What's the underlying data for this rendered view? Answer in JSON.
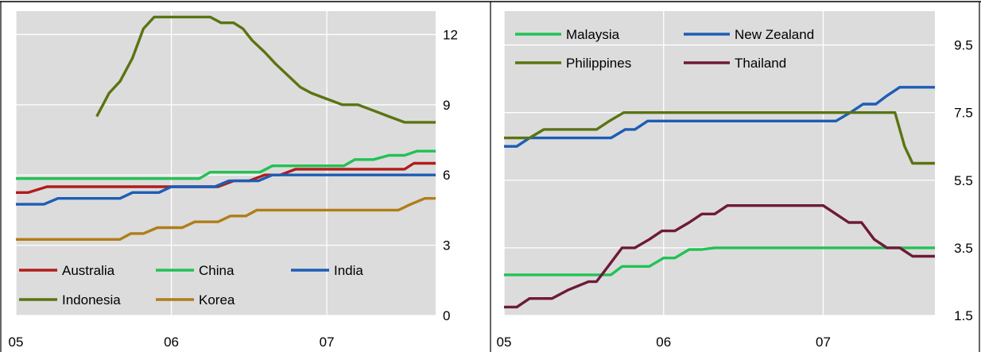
{
  "chart_data": [
    {
      "type": "line",
      "x_ticks": [
        "05",
        "06",
        "07"
      ],
      "xlim": [
        0,
        27
      ],
      "ylim": [
        0,
        13
      ],
      "y_ticks": [
        "0",
        "3",
        "6",
        "9",
        "12"
      ],
      "grid": true,
      "legend_position": "bottom-left",
      "series": [
        {
          "name": "Australia",
          "color": "#B01C1C",
          "x": [
            0,
            0.8,
            2,
            4,
            6,
            8,
            9,
            10,
            11,
            12,
            13,
            14,
            15,
            16,
            17,
            18,
            19,
            20,
            21,
            22,
            23,
            24,
            25,
            25.6,
            26.4,
            27
          ],
          "y": [
            5.25,
            5.25,
            5.5,
            5.5,
            5.5,
            5.5,
            5.5,
            5.5,
            5.5,
            5.5,
            5.5,
            5.75,
            5.75,
            6.0,
            6.0,
            6.25,
            6.25,
            6.25,
            6.25,
            6.25,
            6.25,
            6.25,
            6.25,
            6.5,
            6.5,
            6.5
          ]
        },
        {
          "name": "China",
          "color": "#22C155",
          "x": [
            0,
            3,
            5,
            7,
            9,
            11.8,
            12.5,
            14,
            15.7,
            16.5,
            19,
            21.1,
            21.8,
            23,
            24,
            25,
            25.8,
            26.5,
            27
          ],
          "y": [
            5.85,
            5.85,
            5.85,
            5.85,
            5.85,
            5.85,
            6.12,
            6.12,
            6.12,
            6.39,
            6.39,
            6.39,
            6.66,
            6.66,
            6.84,
            6.84,
            7.02,
            7.02,
            7.02
          ]
        },
        {
          "name": "India",
          "color": "#1D5DB5",
          "x": [
            0,
            1.8,
            2.7,
            6.7,
            7.5,
            9.2,
            10,
            12.8,
            13.7,
            15.6,
            16.5,
            27
          ],
          "y": [
            4.75,
            4.75,
            5.0,
            5.0,
            5.25,
            5.25,
            5.5,
            5.5,
            5.75,
            5.75,
            6.0,
            6.0
          ]
        },
        {
          "name": "Indonesia",
          "color": "#5A7412",
          "x": [
            5.2,
            6,
            6.7,
            7.5,
            8.2,
            8.9,
            9.3,
            12.5,
            13.2,
            14,
            14.6,
            15.2,
            16,
            16.7,
            17.5,
            18.3,
            19,
            20,
            21,
            22,
            23,
            24,
            25,
            26,
            27
          ],
          "y": [
            8.5,
            9.5,
            10.0,
            11.0,
            12.25,
            12.75,
            12.75,
            12.75,
            12.5,
            12.5,
            12.25,
            11.75,
            11.25,
            10.75,
            10.25,
            9.75,
            9.5,
            9.25,
            9.0,
            9.0,
            8.75,
            8.5,
            8.25,
            8.25,
            8.25
          ]
        },
        {
          "name": "Korea",
          "color": "#B07D1A",
          "x": [
            0,
            3,
            4,
            6.7,
            7.4,
            8.2,
            9.1,
            10,
            10.7,
            11.5,
            12,
            13,
            13.8,
            14.8,
            15.5,
            16.4,
            17.2,
            18,
            19,
            20,
            21,
            22,
            23,
            24,
            24.6,
            25.4,
            26.3,
            27
          ],
          "y": [
            3.25,
            3.25,
            3.25,
            3.25,
            3.5,
            3.5,
            3.75,
            3.75,
            3.75,
            4.0,
            4.0,
            4.0,
            4.25,
            4.25,
            4.5,
            4.5,
            4.5,
            4.5,
            4.5,
            4.5,
            4.5,
            4.5,
            4.5,
            4.5,
            4.5,
            4.75,
            5.0,
            5.0
          ]
        }
      ],
      "legend": [
        {
          "name": "Australia",
          "color": "#B01C1C",
          "col": 0,
          "row": 0
        },
        {
          "name": "China",
          "color": "#22C155",
          "col": 1,
          "row": 0
        },
        {
          "name": "India",
          "color": "#1D5DB5",
          "col": 2,
          "row": 0
        },
        {
          "name": "Indonesia",
          "color": "#5A7412",
          "col": 0,
          "row": 1
        },
        {
          "name": "Korea",
          "color": "#B07D1A",
          "col": 1,
          "row": 1
        }
      ]
    },
    {
      "type": "line",
      "x_ticks": [
        "05",
        "06",
        "07"
      ],
      "xlim": [
        0,
        27
      ],
      "ylim": [
        1.5,
        10.5
      ],
      "y_ticks": [
        "1.5",
        "3.5",
        "5.5",
        "7.5",
        "9.5"
      ],
      "grid": true,
      "legend_position": "top-left",
      "series": [
        {
          "name": "Malaysia",
          "color": "#22C155",
          "x": [
            0,
            3,
            5,
            6.7,
            7.4,
            8.2,
            9.1,
            10,
            10.7,
            11.6,
            12.4,
            13.2,
            14,
            15,
            17,
            20,
            23,
            25,
            27
          ],
          "y": [
            2.7,
            2.7,
            2.7,
            2.7,
            2.95,
            2.95,
            2.95,
            3.2,
            3.2,
            3.45,
            3.45,
            3.5,
            3.5,
            3.5,
            3.5,
            3.5,
            3.5,
            3.5,
            3.5
          ]
        },
        {
          "name": "New Zealand",
          "color": "#1D5DB5",
          "x": [
            0,
            0.8,
            1.6,
            4,
            6.7,
            7.6,
            8.2,
            9,
            12,
            16,
            18,
            20.8,
            21.7,
            22.5,
            23.3,
            24,
            24.8,
            25.6,
            27
          ],
          "y": [
            6.5,
            6.5,
            6.75,
            6.75,
            6.75,
            7.0,
            7.0,
            7.25,
            7.25,
            7.25,
            7.25,
            7.25,
            7.5,
            7.75,
            7.75,
            8.0,
            8.25,
            8.25,
            8.25
          ]
        },
        {
          "name": "Philippines",
          "color": "#5A7412",
          "x": [
            0,
            1.6,
            2.5,
            5,
            5.8,
            6.6,
            7.5,
            10,
            15,
            20,
            23,
            24.5,
            25.1,
            25.6,
            27
          ],
          "y": [
            6.75,
            6.75,
            7.0,
            7.0,
            7.0,
            7.25,
            7.5,
            7.5,
            7.5,
            7.5,
            7.5,
            7.5,
            6.5,
            6.0,
            6.0
          ]
        },
        {
          "name": "Thailand",
          "color": "#6E1A38",
          "x": [
            0,
            0.8,
            1.6,
            3,
            4,
            5.3,
            5.8,
            6.6,
            7.4,
            8.2,
            9.1,
            9.9,
            10.7,
            11.6,
            12.4,
            13.2,
            14,
            15,
            16,
            17,
            18,
            19,
            20,
            20.8,
            21.6,
            22.4,
            23.2,
            24,
            24.8,
            25.6,
            27
          ],
          "y": [
            1.75,
            1.75,
            2.0,
            2.0,
            2.25,
            2.5,
            2.5,
            3.0,
            3.5,
            3.5,
            3.75,
            4.0,
            4.0,
            4.25,
            4.5,
            4.5,
            4.75,
            4.75,
            4.75,
            4.75,
            4.75,
            4.75,
            4.75,
            4.5,
            4.25,
            4.25,
            3.75,
            3.5,
            3.5,
            3.25,
            3.25
          ]
        }
      ],
      "legend": [
        {
          "name": "Malaysia",
          "color": "#22C155",
          "col": 0,
          "row": 0
        },
        {
          "name": "New Zealand",
          "color": "#1D5DB5",
          "col": 1,
          "row": 0
        },
        {
          "name": "Philippines",
          "color": "#5A7412",
          "col": 0,
          "row": 1
        },
        {
          "name": "Thailand",
          "color": "#6E1A38",
          "col": 1,
          "row": 1
        }
      ]
    }
  ]
}
